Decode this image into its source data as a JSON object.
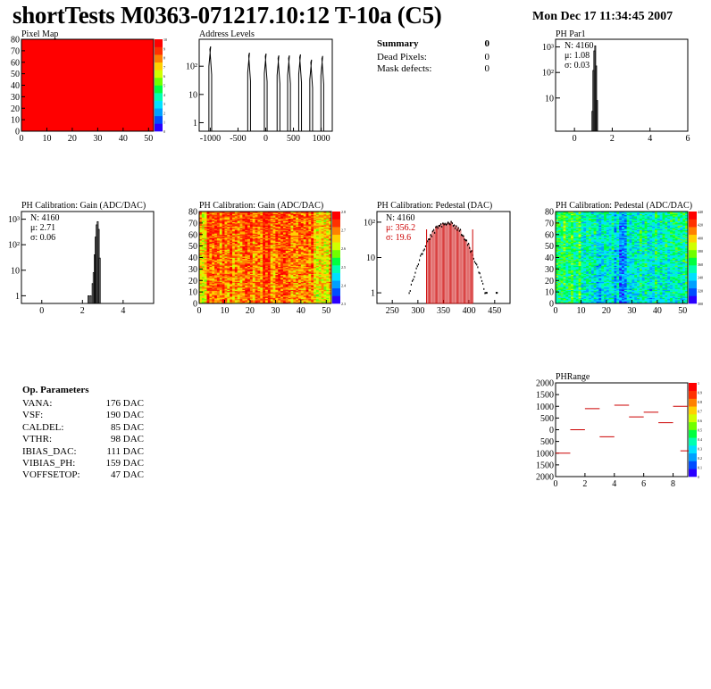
{
  "header": {
    "title": "shortTests M0363-071217.10:12 T-10a (C5)",
    "date": "Mon Dec 17 11:34:45 2007"
  },
  "summary": {
    "title": "Summary",
    "total": "0",
    "rows": [
      {
        "label": "Dead Pixels:",
        "value": "0"
      },
      {
        "label": "Mask defects:",
        "value": "0"
      }
    ]
  },
  "op_params": {
    "title": "Op. Parameters",
    "rows": [
      {
        "label": "VANA:",
        "value": "176 DAC"
      },
      {
        "label": "VSF:",
        "value": "190 DAC"
      },
      {
        "label": "CALDEL:",
        "value": "85 DAC"
      },
      {
        "label": "VTHR:",
        "value": "98 DAC"
      },
      {
        "label": "IBIAS_DAC:",
        "value": "111 DAC"
      },
      {
        "label": "VIBIAS_PH:",
        "value": "159 DAC"
      },
      {
        "label": "VOFFSETOP:",
        "value": "47 DAC"
      }
    ]
  },
  "chart_data": [
    {
      "id": "pixel-map",
      "type": "heatmap",
      "title": "Pixel Map",
      "xlim": [
        0,
        52
      ],
      "ylim": [
        0,
        80
      ],
      "xticks": [
        0,
        10,
        20,
        30,
        40,
        50
      ],
      "yticks": [
        0,
        10,
        20,
        30,
        40,
        50,
        60,
        70,
        80
      ],
      "fill_color": "#ff0000",
      "colorbar": {
        "ticks": [
          "0",
          "1",
          "2",
          "3",
          "4",
          "5",
          "6",
          "7",
          "8",
          "9",
          "10"
        ]
      }
    },
    {
      "id": "address-levels",
      "type": "bar",
      "title": "Address Levels",
      "xlim": [
        -1200,
        1200
      ],
      "ylim": [
        0.5,
        900
      ],
      "log_y": true,
      "xticks": [
        -1000,
        -500,
        0,
        500,
        1000
      ],
      "yticks": [
        {
          "v": 1,
          "label": "1"
        },
        {
          "v": 10,
          "label": "10"
        },
        {
          "v": 100,
          "label": "10²"
        }
      ],
      "peaks": [
        {
          "x": -1000,
          "h": 500
        },
        {
          "x": -300,
          "h": 300
        },
        {
          "x": 0,
          "h": 280
        },
        {
          "x": 230,
          "h": 240
        },
        {
          "x": 420,
          "h": 240
        },
        {
          "x": 620,
          "h": 260
        },
        {
          "x": 820,
          "h": 170
        },
        {
          "x": 1020,
          "h": 230
        }
      ]
    },
    {
      "id": "ph-par1",
      "type": "bar",
      "title": "PH Par1",
      "xlim": [
        -1,
        6
      ],
      "ylim": [
        0.5,
        2000
      ],
      "log_y": true,
      "xticks": [
        0,
        2,
        4,
        6
      ],
      "yticks": [
        {
          "v": 10,
          "label": "10"
        },
        {
          "v": 100,
          "label": "10²"
        },
        {
          "v": 1000,
          "label": "10³"
        }
      ],
      "stats": {
        "n": "N: 4160",
        "mean": "μ: 1.08",
        "sigma": "σ: 0.03"
      },
      "bins": [
        {
          "x": 0.95,
          "h": 3
        },
        {
          "x": 1.0,
          "h": 120
        },
        {
          "x": 1.05,
          "h": 700
        },
        {
          "x": 1.1,
          "h": 1100
        },
        {
          "x": 1.15,
          "h": 180
        },
        {
          "x": 1.2,
          "h": 8
        }
      ]
    },
    {
      "id": "gain-hist",
      "type": "bar",
      "title": "PH Calibration: Gain (ADC/DAC)",
      "xlim": [
        -1,
        5.5
      ],
      "ylim": [
        0.5,
        2000
      ],
      "log_y": true,
      "xticks": [
        0,
        2,
        4
      ],
      "yticks": [
        {
          "v": 1,
          "label": "1"
        },
        {
          "v": 10,
          "label": "10"
        },
        {
          "v": 100,
          "label": "10²"
        },
        {
          "v": 1000,
          "label": "10³"
        }
      ],
      "stats": {
        "n": "N: 4160",
        "mean": "μ: 2.71",
        "sigma": "σ: 0.06"
      },
      "bins": [
        {
          "x": 2.3,
          "h": 1
        },
        {
          "x": 2.4,
          "h": 1
        },
        {
          "x": 2.5,
          "h": 3
        },
        {
          "x": 2.55,
          "h": 8
        },
        {
          "x": 2.6,
          "h": 40
        },
        {
          "x": 2.65,
          "h": 200
        },
        {
          "x": 2.7,
          "h": 600
        },
        {
          "x": 2.75,
          "h": 800
        },
        {
          "x": 2.8,
          "h": 400
        },
        {
          "x": 2.85,
          "h": 30
        }
      ]
    },
    {
      "id": "gain-map",
      "type": "heatmap",
      "title": "PH Calibration: Gain (ADC/DAC)",
      "xlim": [
        0,
        52
      ],
      "ylim": [
        0,
        80
      ],
      "xticks": [
        0,
        10,
        20,
        30,
        40,
        50
      ],
      "yticks": [
        0,
        10,
        20,
        30,
        40,
        50,
        60,
        70,
        80
      ],
      "colorbar": {
        "ticks": [
          "2.3",
          "2.4",
          "2.5",
          "2.6",
          "2.7",
          "2.8"
        ]
      }
    },
    {
      "id": "pedestal-hist",
      "type": "bar",
      "title": "PH Calibration: Pedestal (DAC)",
      "xlim": [
        220,
        480
      ],
      "ylim": [
        0.5,
        200
      ],
      "log_y": true,
      "xticks": [
        250,
        300,
        350,
        400,
        450
      ],
      "yticks": [
        {
          "v": 1,
          "label": "1"
        },
        {
          "v": 10,
          "label": "10"
        },
        {
          "v": 100,
          "label": "10²"
        }
      ],
      "stats": {
        "n": "N: 4160",
        "mean": "μ: 356.2",
        "sigma": "σ: 19.6"
      },
      "fit_lines": [
        317,
        407
      ],
      "mean": 356.2,
      "sigma": 19.6,
      "peak": 95
    },
    {
      "id": "pedestal-map",
      "type": "heatmap",
      "title": "PH Calibration: Pedestal (ADC/DAC)",
      "xlim": [
        0,
        52
      ],
      "ylim": [
        0,
        80
      ],
      "xticks": [
        0,
        10,
        20,
        30,
        40,
        50
      ],
      "yticks": [
        0,
        10,
        20,
        30,
        40,
        50,
        60,
        70,
        80
      ],
      "colorbar": {
        "ticks": [
          "300",
          "320",
          "340",
          "360",
          "380",
          "400",
          "420",
          "440"
        ]
      }
    },
    {
      "id": "ph-range",
      "type": "scatter",
      "title": "PHRange",
      "xlim": [
        0,
        9
      ],
      "ylim": [
        -2000,
        2000
      ],
      "xticks": [
        0,
        2,
        4,
        6,
        8
      ],
      "yticks": [
        -2000,
        -1500,
        -1000,
        -500,
        0,
        500,
        1000,
        1500,
        2000
      ],
      "ytick_labels": [
        "2000",
        "1500",
        "1000",
        "500",
        "0",
        "500",
        "1000",
        "1500",
        "2000"
      ],
      "points": [
        {
          "x": 0,
          "y": -1000
        },
        {
          "x": 1,
          "y": 0
        },
        {
          "x": 2,
          "y": 900
        },
        {
          "x": 3,
          "y": -300
        },
        {
          "x": 4,
          "y": 1050
        },
        {
          "x": 5,
          "y": 550
        },
        {
          "x": 6,
          "y": 750
        },
        {
          "x": 7,
          "y": 300
        },
        {
          "x": 8,
          "y": 1000
        },
        {
          "x": 8.5,
          "y": -900
        }
      ],
      "colorbar": {
        "ticks": [
          "0",
          "0.1",
          "0.2",
          "0.3",
          "0.4",
          "0.5",
          "0.6",
          "0.7",
          "0.8",
          "0.9",
          "1"
        ]
      }
    }
  ]
}
